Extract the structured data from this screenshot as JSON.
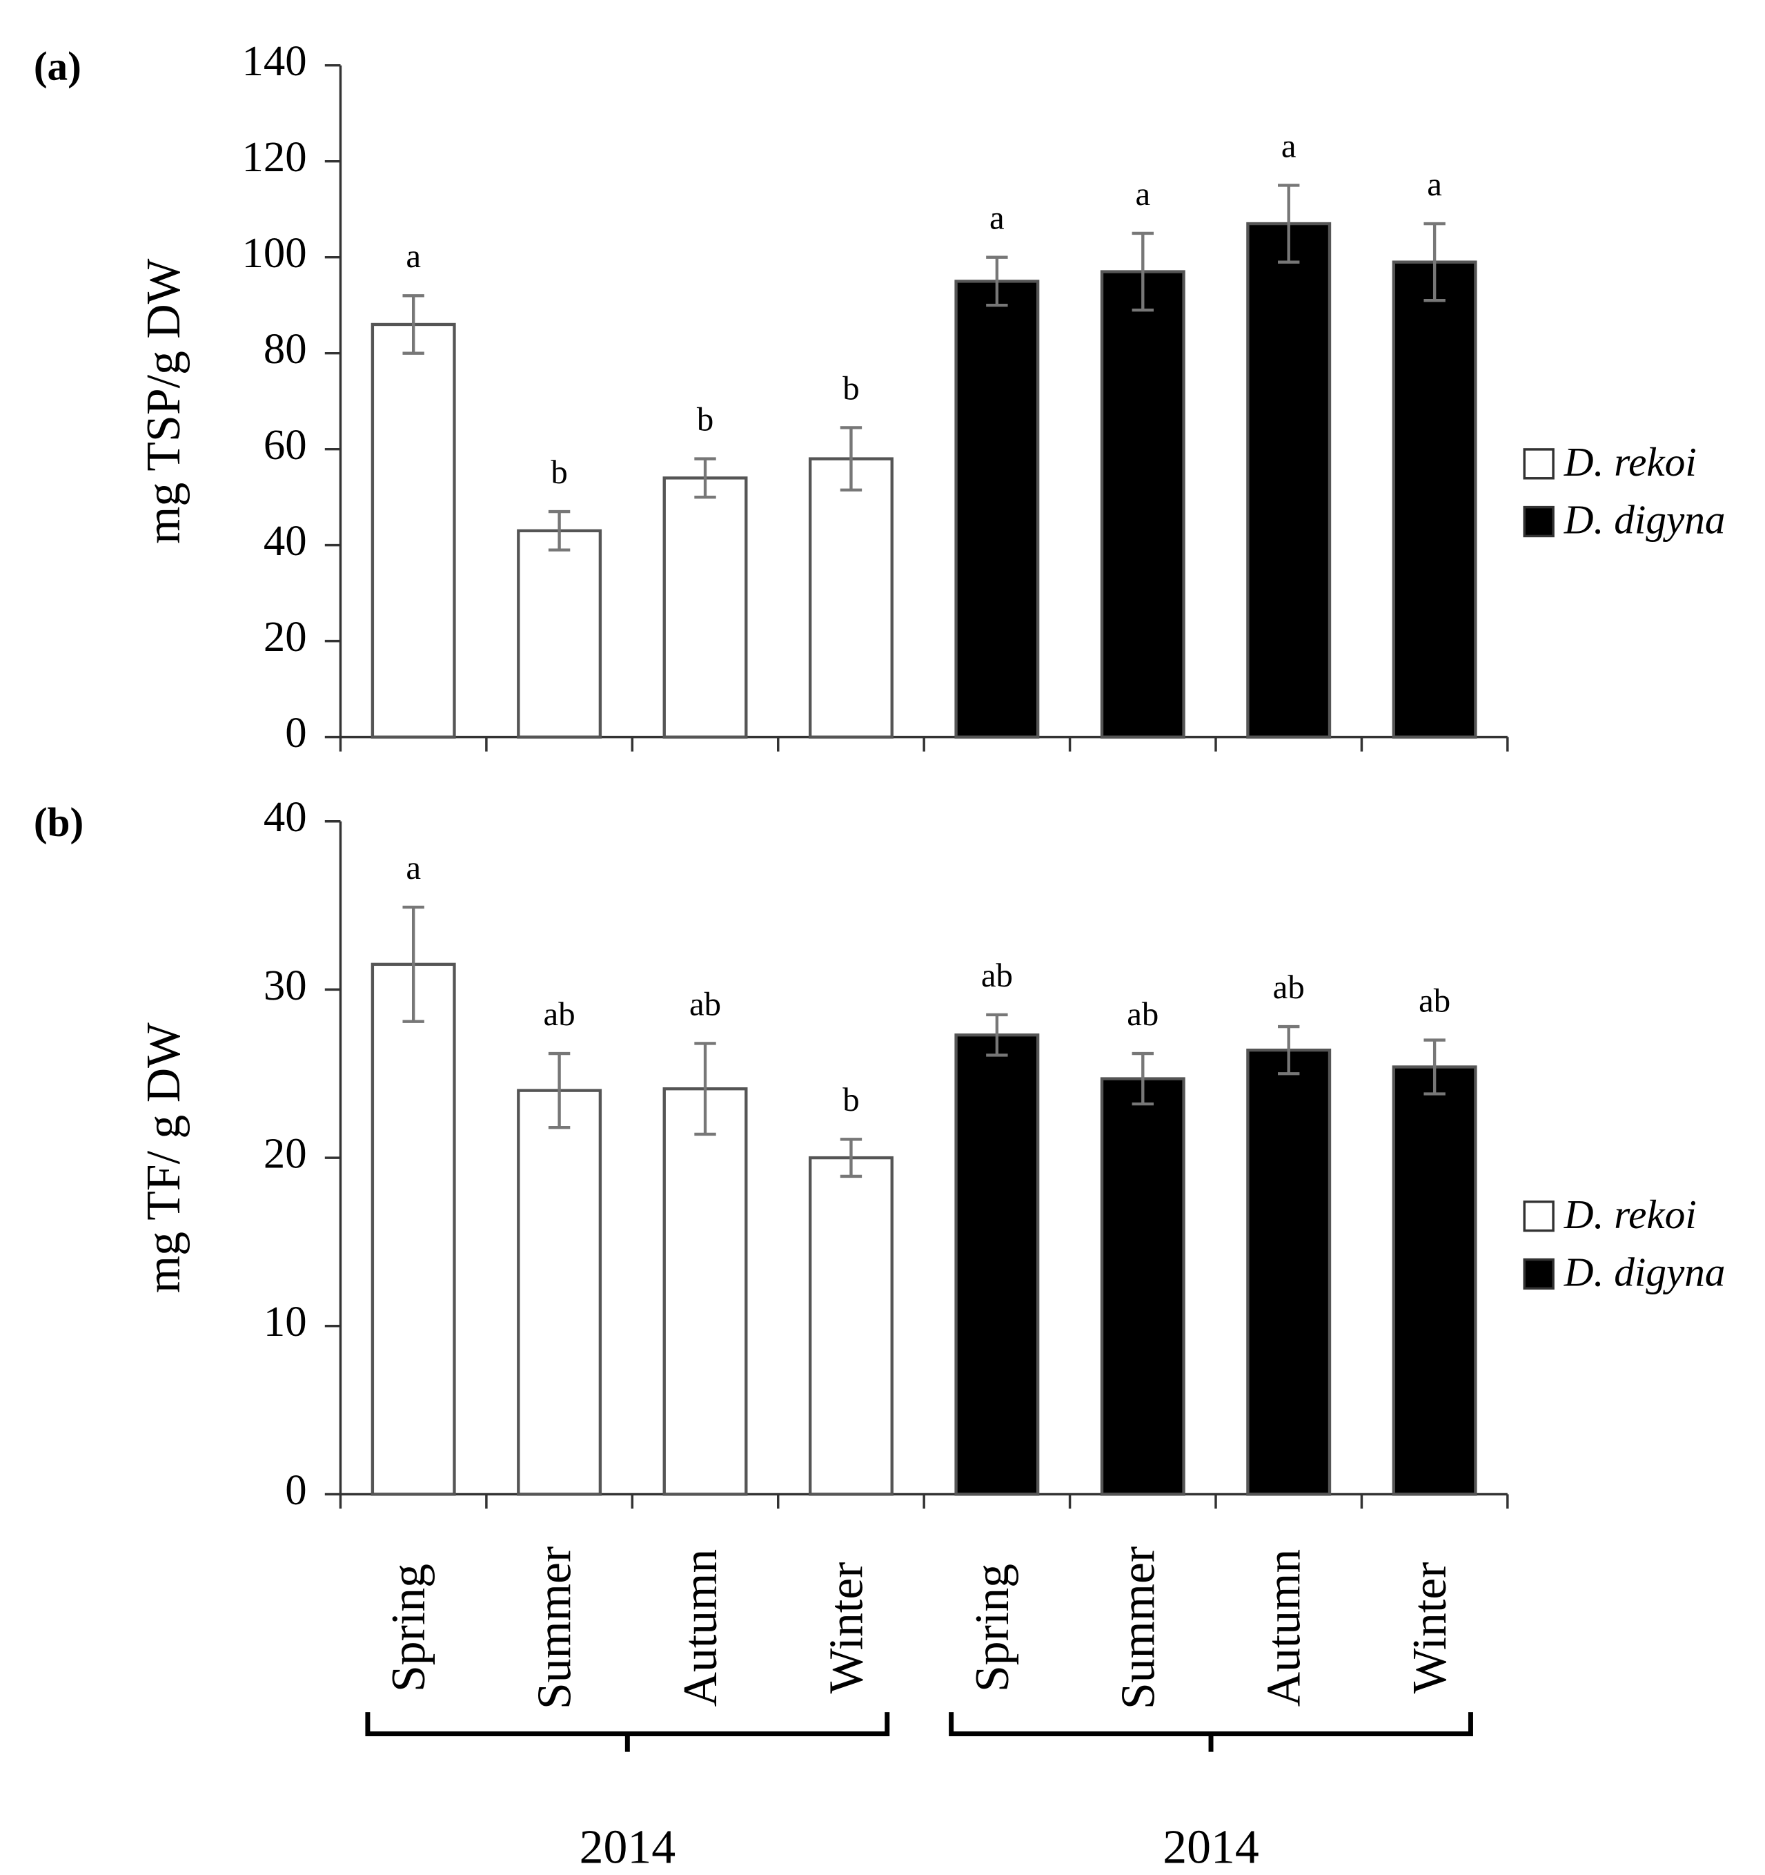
{
  "categories": [
    "Spring",
    "Summer",
    "Autumn",
    "Winter",
    "Spring",
    "Summer",
    "Autumn",
    "Winter"
  ],
  "groups": [
    {
      "label": "2014",
      "from": 0,
      "to": 3
    },
    {
      "label": "2014",
      "from": 4,
      "to": 7
    }
  ],
  "chart_data": [
    {
      "type": "bar",
      "panel": "(a)",
      "ylabel": "mg TSP/g DW",
      "ylim": [
        0,
        140
      ],
      "yticks": [
        0,
        20,
        40,
        60,
        80,
        100,
        120,
        140
      ],
      "series": [
        {
          "name": "D. rekoi",
          "color": "#ffffff",
          "values": [
            86,
            43,
            54,
            58,
            null,
            null,
            null,
            null
          ],
          "errors": [
            6,
            4,
            4,
            6.5,
            null,
            null,
            null,
            null
          ],
          "letters": [
            "a",
            "b",
            "b",
            "b",
            null,
            null,
            null,
            null
          ]
        },
        {
          "name": "D. digyna",
          "color": "#000000",
          "values": [
            null,
            null,
            null,
            null,
            95,
            97,
            107,
            99
          ],
          "errors": [
            null,
            null,
            null,
            null,
            5,
            8,
            8,
            8
          ],
          "letters": [
            null,
            null,
            null,
            null,
            "a",
            "a",
            "a",
            "a"
          ]
        }
      ]
    },
    {
      "type": "bar",
      "panel": "(b)",
      "ylabel": "mg TF/ g DW",
      "ylim": [
        0,
        40
      ],
      "yticks": [
        0,
        10,
        20,
        30,
        40
      ],
      "series": [
        {
          "name": "D. rekoi",
          "color": "#ffffff",
          "values": [
            31.5,
            24,
            24.1,
            20,
            null,
            null,
            null,
            null
          ],
          "errors": [
            3.4,
            2.2,
            2.7,
            1.1,
            null,
            null,
            null,
            null
          ],
          "letters": [
            "a",
            "ab",
            "ab",
            "b",
            null,
            null,
            null,
            null
          ]
        },
        {
          "name": "D. digyna",
          "color": "#000000",
          "values": [
            null,
            null,
            null,
            null,
            27.3,
            24.7,
            26.4,
            25.4
          ],
          "errors": [
            null,
            null,
            null,
            null,
            1.2,
            1.5,
            1.4,
            1.6
          ],
          "letters": [
            null,
            null,
            null,
            null,
            "ab",
            "ab",
            "ab",
            "ab"
          ]
        }
      ]
    }
  ]
}
